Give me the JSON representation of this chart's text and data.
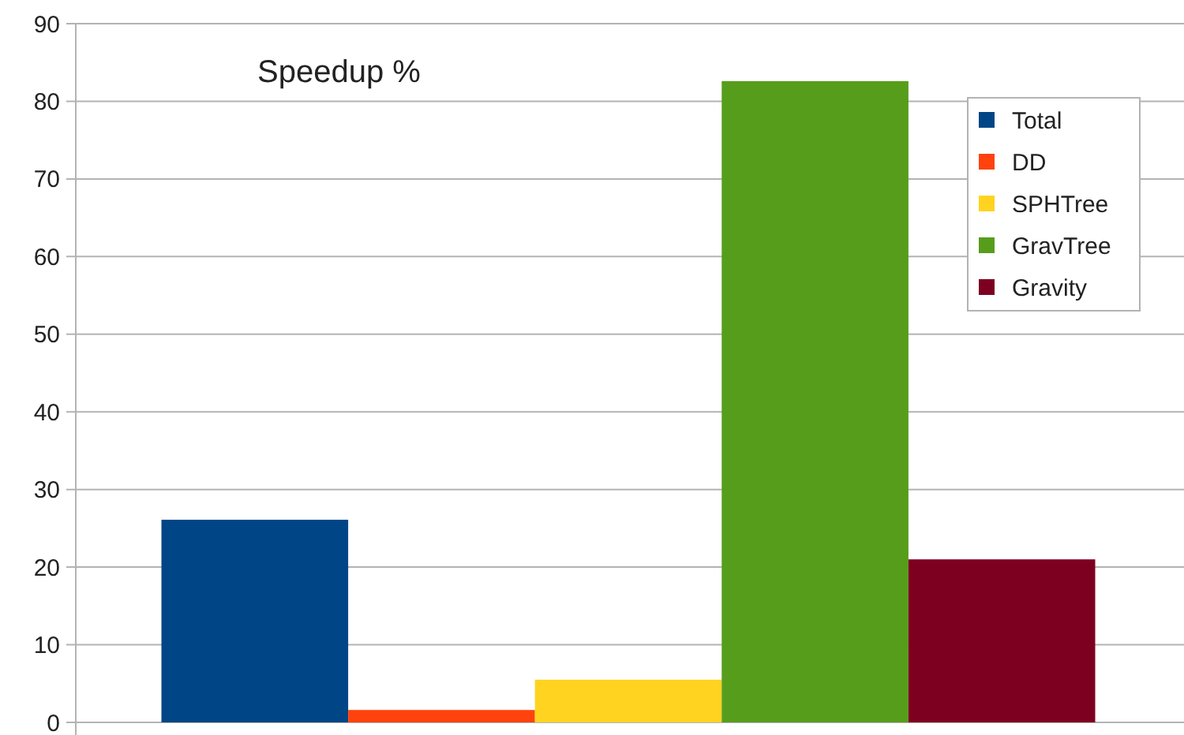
{
  "chart_data": {
    "type": "bar",
    "title": "Speedup %",
    "categories": [
      null
    ],
    "series": [
      {
        "name": "Total",
        "color": "#004586",
        "values": [
          26.1
        ]
      },
      {
        "name": "DD",
        "color": "#ff420e",
        "values": [
          1.6
        ]
      },
      {
        "name": "SPHTree",
        "color": "#ffd320",
        "values": [
          5.5
        ]
      },
      {
        "name": "GravTree",
        "color": "#579d1c",
        "values": [
          82.6
        ]
      },
      {
        "name": "Gravity",
        "color": "#7e0021",
        "values": [
          21.0
        ]
      }
    ],
    "ylim": [
      0,
      90
    ],
    "yticks": [
      0,
      10,
      20,
      30,
      40,
      50,
      60,
      70,
      80,
      90
    ],
    "grid": "y",
    "legend": "top right"
  }
}
